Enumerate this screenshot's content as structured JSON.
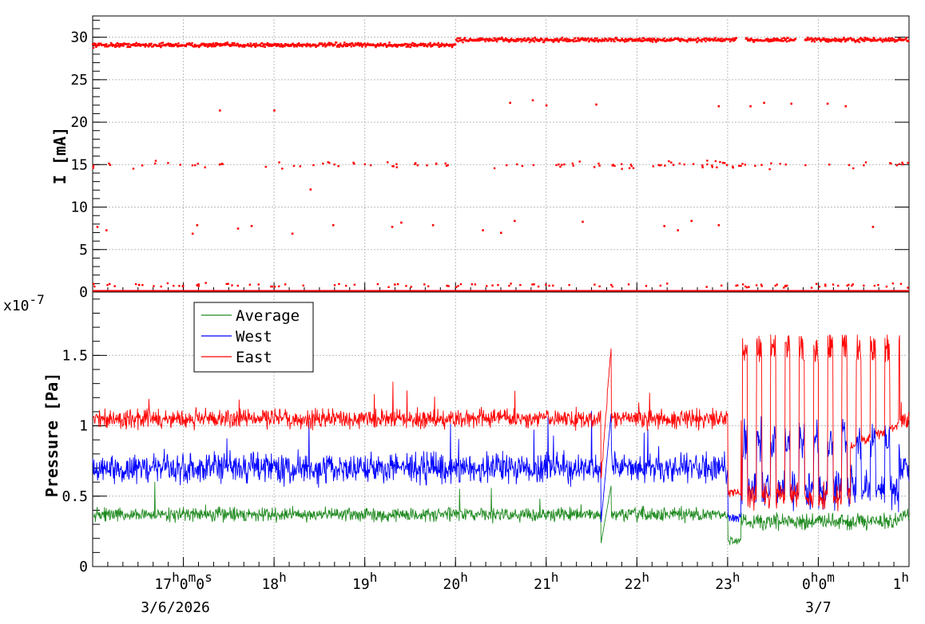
{
  "chart_data": [
    {
      "type": "scatter",
      "ylabel": "I [mA]",
      "ylim": [
        0,
        32.5
      ],
      "yticks": [
        "0",
        "5",
        "10",
        "15",
        "20",
        "25",
        "30"
      ],
      "grid": true,
      "series": [
        {
          "color": "#ff0000",
          "bands": [
            {
              "level": 29.5,
              "points_per_band": 1200
            },
            {
              "level": 15,
              "points_per_band": 120
            },
            {
              "level": 0.8,
              "points_per_band": 110
            },
            {
              "level": 0.05,
              "points_per_band": 1
            }
          ],
          "outliers": [
            [
              1.4,
              21.4
            ],
            [
              2.0,
              21.4
            ],
            [
              4.6,
              22.3
            ],
            [
              4.85,
              22.6
            ],
            [
              5.0,
              22.0
            ],
            [
              5.55,
              22.1
            ],
            [
              6.9,
              21.9
            ],
            [
              7.25,
              21.9
            ],
            [
              7.4,
              22.3
            ],
            [
              7.7,
              22.2
            ],
            [
              8.1,
              22.2
            ],
            [
              8.3,
              21.9
            ],
            [
              2.4,
              12.1
            ],
            [
              0.05,
              7.7
            ],
            [
              0.15,
              7.3
            ],
            [
              1.1,
              6.9
            ],
            [
              1.15,
              7.9
            ],
            [
              1.6,
              7.5
            ],
            [
              1.75,
              7.8
            ],
            [
              2.2,
              6.9
            ],
            [
              2.65,
              7.9
            ],
            [
              3.3,
              7.7
            ],
            [
              3.4,
              8.2
            ],
            [
              3.75,
              7.9
            ],
            [
              4.3,
              7.3
            ],
            [
              4.5,
              7.0
            ],
            [
              4.65,
              8.4
            ],
            [
              5.4,
              8.3
            ],
            [
              6.3,
              7.8
            ],
            [
              6.45,
              7.3
            ],
            [
              6.6,
              8.4
            ],
            [
              6.9,
              7.9
            ],
            [
              8.6,
              7.7
            ]
          ]
        }
      ]
    },
    {
      "type": "line",
      "xlabel": "",
      "ylabel": "Pressure [Pa]",
      "y_exponent": "x10",
      "y_exponent_power": "-7",
      "ylim": [
        0,
        1.95
      ],
      "yticks": [
        "0",
        "0.5",
        "1",
        "1.5"
      ],
      "grid": true,
      "legend": "top-left",
      "xaxis": {
        "range_hours": [
          16.0,
          25.0
        ],
        "labels": [
          {
            "hour": 17,
            "base": "17",
            "sup1": "h",
            "mid": "0",
            "sup2": "m",
            "mid2": "0",
            "sup3": "s"
          },
          {
            "hour": 18,
            "base": "18",
            "sup1": "h"
          },
          {
            "hour": 19,
            "base": "19",
            "sup1": "h"
          },
          {
            "hour": 20,
            "base": "20",
            "sup1": "h"
          },
          {
            "hour": 21,
            "base": "21",
            "sup1": "h"
          },
          {
            "hour": 22,
            "base": "22",
            "sup1": "h"
          },
          {
            "hour": 23,
            "base": "23",
            "sup1": "h"
          },
          {
            "hour": 24,
            "base": "0",
            "sup1": "h",
            "mid": "0",
            "sup2": "m"
          },
          {
            "hour": 25,
            "base": "1",
            "sup1": "h"
          }
        ],
        "date_labels": [
          {
            "hour": 17,
            "text": "3/6/2026"
          },
          {
            "hour": 24,
            "text": "3/7"
          }
        ]
      },
      "series": [
        {
          "name": "Average",
          "color": "#228b22",
          "baseline": 0.37,
          "noise": 0.07
        },
        {
          "name": "West",
          "color": "#0000ff",
          "baseline": 0.7,
          "noise": 0.15
        },
        {
          "name": "East",
          "color": "#ff0000",
          "baseline": 1.05,
          "noise": 0.1
        }
      ],
      "events": [
        {
          "from": 21.6,
          "to": 21.8,
          "description": "spike"
        },
        {
          "from": 23.0,
          "to": 24.9,
          "description": "oscillation"
        }
      ]
    }
  ]
}
